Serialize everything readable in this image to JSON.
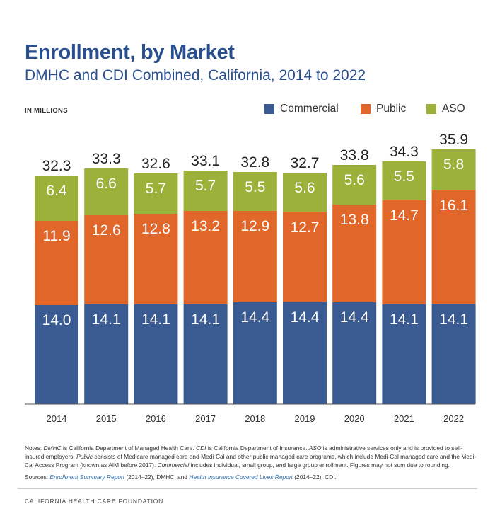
{
  "chart_data": {
    "type": "bar",
    "stacked": true,
    "title": "Enrollment, by Market",
    "subtitle": "DMHC and CDI Combined, California, 2014 to 2022",
    "unit_label": "IN MILLIONS",
    "categories": [
      "2014",
      "2015",
      "2016",
      "2017",
      "2018",
      "2019",
      "2020",
      "2021",
      "2022"
    ],
    "series": [
      {
        "name": "Commercial",
        "color": "#3a5a92",
        "values": [
          14.0,
          14.1,
          14.1,
          14.1,
          14.4,
          14.4,
          14.4,
          14.1,
          14.1
        ]
      },
      {
        "name": "Public",
        "color": "#e0662a",
        "values": [
          11.9,
          12.6,
          12.8,
          13.2,
          12.9,
          12.7,
          13.8,
          14.7,
          16.1
        ]
      },
      {
        "name": "ASO",
        "color": "#9bb13a",
        "values": [
          6.4,
          6.6,
          5.7,
          5.7,
          5.5,
          5.6,
          5.6,
          5.5,
          5.8
        ]
      }
    ],
    "totals": [
      32.3,
      33.3,
      32.6,
      33.1,
      32.8,
      32.7,
      33.8,
      34.3,
      35.9
    ],
    "legend_position": "top-right",
    "grid": false
  },
  "notes": {
    "line1_a": "Notes: ",
    "line1_b": "DMHC",
    "line1_c": " is California Department of Managed Health Care. ",
    "line1_d": "CDI",
    "line1_e": " is California Department of Insurance. ",
    "line1_f": "ASO",
    "line1_g": " is administrative services only and is provided to self-insured employers.",
    "line2_a": "Public",
    "line2_b": " consists of Medicare managed care and Medi-Cal and other public managed care programs, which include Medi-Cal managed care and the Medi-Cal Access Program (known as AIM before 2017). ",
    "line2_c": "Commercial",
    "line2_d": " includes individual, small group, and large group enrollment. Figures may not sum due to rounding.",
    "sources_a": "Sources: ",
    "sources_link1": "Enrollment Summary Report",
    "sources_b": " (2014–22), DMHC; and ",
    "sources_link2": "Health Insurance Covered Lives Report",
    "sources_c": " (2014–22), CDI."
  },
  "footer": "CALIFORNIA HEALTH CARE FOUNDATION"
}
